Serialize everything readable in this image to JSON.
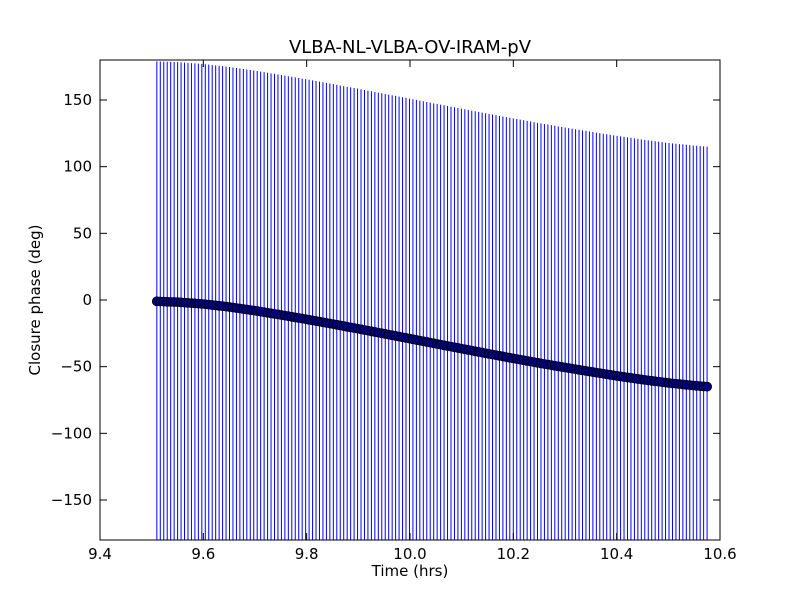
{
  "chart_data": {
    "type": "scatter",
    "title": "VLBA-NL-VLBA-OV-IRAM-pV",
    "xlabel": "Time (hrs)",
    "ylabel": "Closure phase (deg)",
    "xlim": [
      9.4,
      10.6
    ],
    "ylim": [
      -180,
      180
    ],
    "xticks": [
      9.4,
      9.6,
      9.8,
      10.0,
      10.2,
      10.4,
      10.6
    ],
    "xtick_labels": [
      "9.4",
      "9.6",
      "9.8",
      "10.0",
      "10.2",
      "10.4",
      "10.6"
    ],
    "yticks": [
      -150,
      -100,
      -50,
      0,
      50,
      100,
      150
    ],
    "ytick_labels": [
      "−150",
      "−100",
      "−50",
      "0",
      "50",
      "100",
      "150"
    ],
    "grid": false,
    "series": [
      {
        "marker": "circle",
        "marker_color": "#000080",
        "errorbar_color": "#0000ff",
        "x_start": 9.51,
        "x_end": 10.575,
        "n_points": 160,
        "x": [
          9.51,
          9.55,
          9.6,
          9.65,
          9.7,
          9.75,
          9.8,
          9.85,
          9.9,
          9.95,
          10.0,
          10.05,
          10.1,
          10.15,
          10.2,
          10.25,
          10.3,
          10.35,
          10.4,
          10.45,
          10.5,
          10.55,
          10.575
        ],
        "y": [
          -1,
          -1.6,
          -3,
          -5.2,
          -8,
          -11.2,
          -14.5,
          -18,
          -21.6,
          -25.3,
          -29,
          -32.8,
          -36.5,
          -40.2,
          -43.8,
          -47.3,
          -50.6,
          -53.8,
          -56.9,
          -59.7,
          -62.2,
          -64.2,
          -65
        ],
        "yerr": 180
      }
    ]
  }
}
